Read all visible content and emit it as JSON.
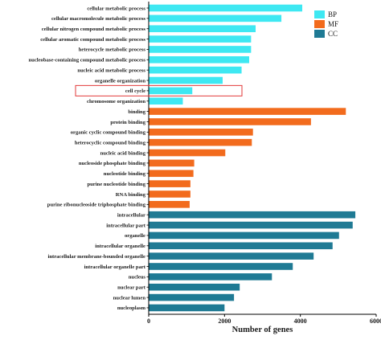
{
  "chart_data": {
    "type": "bar",
    "orientation": "horizontal",
    "xlabel": "Number of genes",
    "ylabel": "",
    "xlim": [
      0,
      6000
    ],
    "xticks": [
      "0",
      "2000",
      "4000",
      "6000"
    ],
    "grid": false,
    "legend_position": "top-right",
    "series": [
      {
        "name": "BP",
        "color": "#3EE8F2",
        "categories": [
          "cellular metabolic process",
          "cellular macromolecule metabolic process",
          "cellular nitrogen compound metabolic process",
          "cellular aromatic compound metabolic process",
          "heterocycle metabolic process",
          "nucleobase-containing compound metabolic process",
          "nucleic acid metabolic process",
          "organelle organization",
          "cell cycle",
          "chromosome organization"
        ],
        "values": [
          4050,
          3500,
          2820,
          2700,
          2700,
          2650,
          2450,
          1950,
          1150,
          900
        ]
      },
      {
        "name": "MF",
        "color": "#F26B1D",
        "categories": [
          "binding",
          "protein binding",
          "organic cyclic compound binding",
          "heterocyclic compound binding",
          "nucleic acid binding",
          "nucleoside phosphate binding",
          "nucleotide binding",
          "purine nucleotide binding",
          "RNA binding",
          "purine ribonucleoside triphosphate binding"
        ],
        "values": [
          5200,
          4280,
          2750,
          2720,
          2020,
          1200,
          1180,
          1100,
          1100,
          1080
        ]
      },
      {
        "name": "CC",
        "color": "#1F7A94",
        "categories": [
          "intracellular",
          "intracellular part",
          "organelle",
          "intracellular organelle",
          "intracellular membrane-bounded organelle",
          "intracellular organelle part",
          "nucleus",
          "nuclear part",
          "nuclear lumen",
          "nucleoplasm"
        ],
        "values": [
          5450,
          5380,
          5020,
          4850,
          4350,
          3800,
          3250,
          2400,
          2250,
          2000
        ]
      }
    ],
    "highlight": {
      "category": "cell cycle",
      "color": "#E23A3A"
    }
  }
}
